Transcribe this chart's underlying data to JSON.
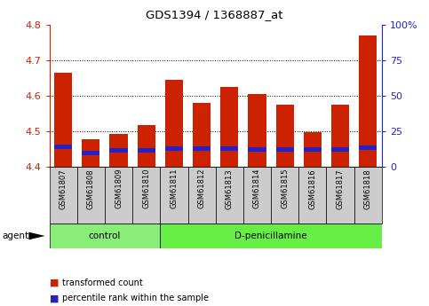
{
  "title": "GDS1394 / 1368887_at",
  "samples": [
    "GSM61807",
    "GSM61808",
    "GSM61809",
    "GSM61810",
    "GSM61811",
    "GSM61812",
    "GSM61813",
    "GSM61814",
    "GSM61815",
    "GSM61816",
    "GSM61817",
    "GSM61818"
  ],
  "red_values": [
    4.665,
    4.477,
    4.493,
    4.517,
    4.645,
    4.58,
    4.625,
    4.605,
    4.575,
    4.498,
    4.575,
    4.77
  ],
  "blue_values": [
    0.012,
    0.012,
    0.012,
    0.012,
    0.012,
    0.012,
    0.012,
    0.012,
    0.012,
    0.012,
    0.012,
    0.012
  ],
  "blue_base": [
    4.45,
    4.432,
    4.44,
    4.44,
    4.445,
    4.445,
    4.445,
    4.443,
    4.443,
    4.443,
    4.443,
    4.448
  ],
  "ylim_left": [
    4.4,
    4.8
  ],
  "yticks_left": [
    4.4,
    4.5,
    4.6,
    4.7,
    4.8
  ],
  "yticks_right": [
    0,
    25,
    50,
    75,
    100
  ],
  "control_group": [
    0,
    1,
    2,
    3
  ],
  "dpen_group": [
    4,
    5,
    6,
    7,
    8,
    9,
    10,
    11
  ],
  "bar_color_red": "#cc2200",
  "bar_color_blue": "#2222cc",
  "bar_base": 4.4,
  "bar_width": 0.6,
  "grid_color": "black",
  "bg_xtick": "#cccccc",
  "bg_control": "#88ee77",
  "bg_dpen": "#66ee44",
  "label_control": "control",
  "label_dpen": "D-penicillamine",
  "legend_red": "transformed count",
  "legend_blue": "percentile rank within the sample",
  "agent_label": "agent",
  "title_color": "black",
  "left_axis_color": "#cc2200",
  "right_axis_color": "#2222cc"
}
